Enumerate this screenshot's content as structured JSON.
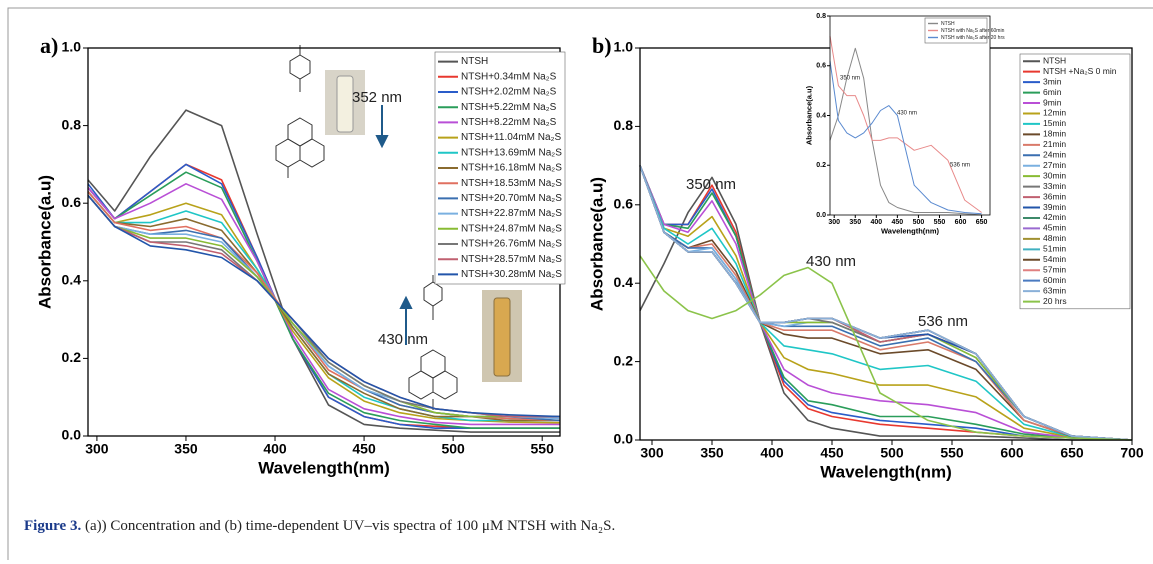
{
  "chart_data": [
    {
      "type": "line",
      "panel_label": "a)",
      "xlabel": "Wavelength(nm)",
      "ylabel": "Absorbance(a.u)",
      "xlim": [
        295,
        560
      ],
      "ylim": [
        0,
        1.0
      ],
      "xticks": [
        300,
        350,
        400,
        450,
        500,
        550
      ],
      "yticks": [
        {
          "value": 0,
          "label": "0.0"
        },
        0.2,
        0.4,
        0.6,
        0.8,
        {
          "value": 1.0,
          "label": "1.0"
        }
      ],
      "annotations": [
        "352 nm",
        "430 nm"
      ],
      "x": [
        295,
        310,
        330,
        350,
        370,
        390,
        410,
        430,
        450,
        470,
        490,
        510,
        530,
        560
      ],
      "series": [
        {
          "name": "NTSH",
          "color": "#555555",
          "values": [
            0.66,
            0.58,
            0.72,
            0.84,
            0.8,
            0.52,
            0.25,
            0.08,
            0.03,
            0.02,
            0.015,
            0.01,
            0.01,
            0.01
          ]
        },
        {
          "name": "NTSH+0.34mM Na₂S",
          "color": "#e8382f",
          "values": [
            0.64,
            0.56,
            0.63,
            0.7,
            0.66,
            0.46,
            0.25,
            0.1,
            0.05,
            0.03,
            0.025,
            0.02,
            0.02,
            0.02
          ]
        },
        {
          "name": "NTSH+2.02mM Na₂S",
          "color": "#2a5cc9",
          "values": [
            0.65,
            0.56,
            0.63,
            0.7,
            0.65,
            0.46,
            0.25,
            0.1,
            0.05,
            0.03,
            0.02,
            0.02,
            0.02,
            0.02
          ]
        },
        {
          "name": "NTSH+5.22mM Na₂S",
          "color": "#2a9d5a",
          "values": [
            0.64,
            0.56,
            0.62,
            0.68,
            0.64,
            0.45,
            0.25,
            0.11,
            0.06,
            0.04,
            0.03,
            0.02,
            0.02,
            0.02
          ]
        },
        {
          "name": "NTSH+8.22mM Na₂S",
          "color": "#b94fd6",
          "values": [
            0.64,
            0.56,
            0.6,
            0.65,
            0.61,
            0.45,
            0.26,
            0.12,
            0.07,
            0.05,
            0.035,
            0.03,
            0.03,
            0.03
          ]
        },
        {
          "name": "NTSH+11.04mM Na₂S",
          "color": "#b8a21a",
          "values": [
            0.63,
            0.55,
            0.57,
            0.6,
            0.57,
            0.43,
            0.27,
            0.15,
            0.09,
            0.06,
            0.045,
            0.04,
            0.036,
            0.034
          ]
        },
        {
          "name": "NTSH+13.69mM Na₂S",
          "color": "#1fc6c6",
          "values": [
            0.63,
            0.55,
            0.55,
            0.58,
            0.55,
            0.43,
            0.28,
            0.16,
            0.1,
            0.07,
            0.05,
            0.04,
            0.04,
            0.04
          ]
        },
        {
          "name": "NTSH+16.18mM Na₂S",
          "color": "#8a6b2f",
          "values": [
            0.63,
            0.55,
            0.54,
            0.56,
            0.53,
            0.42,
            0.28,
            0.16,
            0.11,
            0.07,
            0.05,
            0.05,
            0.04,
            0.04
          ]
        },
        {
          "name": "NTSH+18.53mM Na₂S",
          "color": "#e07060",
          "values": [
            0.63,
            0.55,
            0.53,
            0.54,
            0.51,
            0.42,
            0.29,
            0.17,
            0.12,
            0.08,
            0.06,
            0.05,
            0.045,
            0.04
          ]
        },
        {
          "name": "NTSH+20.70mM Na₂S",
          "color": "#3a6fb0",
          "values": [
            0.62,
            0.54,
            0.52,
            0.53,
            0.51,
            0.41,
            0.29,
            0.18,
            0.12,
            0.08,
            0.06,
            0.05,
            0.05,
            0.04
          ]
        },
        {
          "name": "NTSH+22.87mM Na₂S",
          "color": "#7ab0e0",
          "values": [
            0.62,
            0.54,
            0.52,
            0.52,
            0.5,
            0.41,
            0.29,
            0.18,
            0.12,
            0.09,
            0.06,
            0.05,
            0.05,
            0.045
          ]
        },
        {
          "name": "NTSH+24.87mM Na₂S",
          "color": "#88bb33",
          "values": [
            0.62,
            0.54,
            0.51,
            0.51,
            0.49,
            0.41,
            0.29,
            0.19,
            0.13,
            0.09,
            0.06,
            0.05,
            0.05,
            0.05
          ]
        },
        {
          "name": "NTSH+26.76mM Na₂S",
          "color": "#777777",
          "values": [
            0.62,
            0.54,
            0.5,
            0.5,
            0.48,
            0.4,
            0.3,
            0.19,
            0.13,
            0.09,
            0.07,
            0.06,
            0.05,
            0.05
          ]
        },
        {
          "name": "NTSH+28.57mM Na₂S",
          "color": "#c06070",
          "values": [
            0.62,
            0.54,
            0.5,
            0.49,
            0.47,
            0.4,
            0.3,
            0.2,
            0.14,
            0.1,
            0.07,
            0.06,
            0.05,
            0.05
          ]
        },
        {
          "name": "NTSH+30.28mM Na₂S",
          "color": "#2255aa",
          "values": [
            0.62,
            0.54,
            0.49,
            0.48,
            0.46,
            0.4,
            0.3,
            0.2,
            0.14,
            0.1,
            0.07,
            0.06,
            0.055,
            0.05
          ]
        }
      ]
    },
    {
      "type": "line",
      "panel_label": "b)",
      "xlabel": "Wavelength(nm)",
      "ylabel": "Absorbance(a.u)",
      "xlim": [
        290,
        700
      ],
      "ylim": [
        0,
        1.0
      ],
      "xticks": [
        300,
        350,
        400,
        450,
        500,
        550,
        600,
        650,
        700
      ],
      "yticks": [
        {
          "value": 0,
          "label": "0.0"
        },
        0.2,
        0.4,
        0.6,
        0.8,
        {
          "value": 1.0,
          "label": "1.0"
        }
      ],
      "annotations": [
        "350 nm",
        "430 nm",
        "536 nm"
      ],
      "x": [
        290,
        310,
        330,
        350,
        370,
        390,
        410,
        430,
        450,
        490,
        530,
        570,
        610,
        650,
        700
      ],
      "series": [
        {
          "name": "NTSH",
          "color": "#555555",
          "values": [
            0.33,
            0.45,
            0.58,
            0.67,
            0.55,
            0.3,
            0.12,
            0.05,
            0.03,
            0.01,
            0.01,
            0.01,
            0.005,
            0,
            0
          ]
        },
        {
          "name": "NTSH +Na₂S 0 min",
          "color": "#e8382f",
          "values": [
            0.7,
            0.55,
            0.55,
            0.65,
            0.53,
            0.3,
            0.14,
            0.08,
            0.06,
            0.04,
            0.03,
            0.02,
            0.01,
            0.005,
            0
          ]
        },
        {
          "name": "3min",
          "color": "#2a5cc9",
          "values": [
            0.7,
            0.55,
            0.55,
            0.64,
            0.52,
            0.3,
            0.15,
            0.09,
            0.07,
            0.05,
            0.04,
            0.03,
            0.01,
            0.005,
            0
          ]
        },
        {
          "name": "6min",
          "color": "#2a9d5a",
          "values": [
            0.7,
            0.55,
            0.54,
            0.63,
            0.52,
            0.3,
            0.16,
            0.1,
            0.09,
            0.06,
            0.06,
            0.04,
            0.015,
            0.005,
            0
          ]
        },
        {
          "name": "9min",
          "color": "#b94fd6",
          "values": [
            0.7,
            0.55,
            0.53,
            0.61,
            0.5,
            0.3,
            0.18,
            0.14,
            0.12,
            0.1,
            0.09,
            0.07,
            0.02,
            0.006,
            0
          ]
        },
        {
          "name": "12min",
          "color": "#b8a21a",
          "values": [
            0.7,
            0.54,
            0.52,
            0.57,
            0.47,
            0.3,
            0.21,
            0.18,
            0.17,
            0.14,
            0.14,
            0.11,
            0.03,
            0.007,
            0
          ]
        },
        {
          "name": "15min",
          "color": "#1fc6c6",
          "values": [
            0.7,
            0.54,
            0.5,
            0.54,
            0.45,
            0.3,
            0.24,
            0.23,
            0.22,
            0.18,
            0.19,
            0.15,
            0.04,
            0.008,
            0
          ]
        },
        {
          "name": "18min",
          "color": "#6b4a2a",
          "values": [
            0.7,
            0.53,
            0.49,
            0.51,
            0.43,
            0.3,
            0.27,
            0.26,
            0.26,
            0.22,
            0.23,
            0.18,
            0.05,
            0.009,
            0
          ]
        },
        {
          "name": "21min",
          "color": "#d97a6a",
          "values": [
            0.7,
            0.53,
            0.49,
            0.5,
            0.42,
            0.3,
            0.28,
            0.28,
            0.28,
            0.23,
            0.25,
            0.2,
            0.05,
            0.01,
            0
          ]
        },
        {
          "name": "24min",
          "color": "#3a6fb0",
          "values": [
            0.7,
            0.53,
            0.49,
            0.49,
            0.41,
            0.3,
            0.29,
            0.29,
            0.29,
            0.24,
            0.26,
            0.2,
            0.06,
            0.01,
            0
          ]
        },
        {
          "name": "27min",
          "color": "#7ab0e0",
          "values": [
            0.7,
            0.53,
            0.48,
            0.49,
            0.41,
            0.3,
            0.29,
            0.3,
            0.3,
            0.25,
            0.27,
            0.21,
            0.06,
            0.01,
            0
          ]
        },
        {
          "name": "30min",
          "color": "#88bb33",
          "values": [
            0.7,
            0.53,
            0.48,
            0.48,
            0.4,
            0.3,
            0.3,
            0.3,
            0.3,
            0.25,
            0.27,
            0.21,
            0.06,
            0.01,
            0
          ]
        },
        {
          "name": "33min",
          "color": "#777777",
          "values": [
            0.7,
            0.53,
            0.48,
            0.48,
            0.4,
            0.3,
            0.3,
            0.31,
            0.3,
            0.25,
            0.27,
            0.22,
            0.06,
            0.01,
            0
          ]
        },
        {
          "name": "36min",
          "color": "#c06070",
          "values": [
            0.7,
            0.53,
            0.48,
            0.48,
            0.4,
            0.3,
            0.3,
            0.31,
            0.31,
            0.25,
            0.27,
            0.22,
            0.06,
            0.01,
            0
          ]
        },
        {
          "name": "39min",
          "color": "#2255aa",
          "values": [
            0.7,
            0.53,
            0.48,
            0.48,
            0.4,
            0.3,
            0.3,
            0.31,
            0.31,
            0.26,
            0.27,
            0.22,
            0.06,
            0.01,
            0
          ]
        },
        {
          "name": "42min",
          "color": "#3d8a6a",
          "values": [
            0.7,
            0.53,
            0.48,
            0.48,
            0.4,
            0.3,
            0.3,
            0.31,
            0.31,
            0.26,
            0.28,
            0.22,
            0.06,
            0.01,
            0
          ]
        },
        {
          "name": "45min",
          "color": "#9a6ad0",
          "values": [
            0.7,
            0.53,
            0.48,
            0.48,
            0.4,
            0.3,
            0.3,
            0.31,
            0.31,
            0.26,
            0.28,
            0.22,
            0.06,
            0.01,
            0
          ]
        },
        {
          "name": "48min",
          "color": "#a09030",
          "values": [
            0.7,
            0.53,
            0.48,
            0.48,
            0.4,
            0.3,
            0.3,
            0.31,
            0.31,
            0.26,
            0.28,
            0.22,
            0.06,
            0.01,
            0
          ]
        },
        {
          "name": "51min",
          "color": "#40b0c0",
          "values": [
            0.7,
            0.53,
            0.48,
            0.48,
            0.4,
            0.3,
            0.3,
            0.31,
            0.31,
            0.26,
            0.28,
            0.22,
            0.06,
            0.01,
            0
          ]
        },
        {
          "name": "54min",
          "color": "#6b4a2a",
          "values": [
            0.7,
            0.53,
            0.48,
            0.48,
            0.4,
            0.3,
            0.3,
            0.31,
            0.31,
            0.26,
            0.28,
            0.22,
            0.06,
            0.01,
            0
          ]
        },
        {
          "name": "57min",
          "color": "#e08080",
          "values": [
            0.7,
            0.53,
            0.48,
            0.48,
            0.4,
            0.3,
            0.3,
            0.31,
            0.31,
            0.26,
            0.28,
            0.22,
            0.06,
            0.01,
            0
          ]
        },
        {
          "name": "60min",
          "color": "#4a7ac0",
          "values": [
            0.7,
            0.53,
            0.48,
            0.48,
            0.4,
            0.3,
            0.3,
            0.31,
            0.31,
            0.26,
            0.28,
            0.22,
            0.06,
            0.01,
            0
          ]
        },
        {
          "name": "63min",
          "color": "#8ab0d8",
          "values": [
            0.7,
            0.53,
            0.48,
            0.48,
            0.4,
            0.3,
            0.3,
            0.31,
            0.31,
            0.26,
            0.28,
            0.22,
            0.06,
            0.01,
            0
          ]
        },
        {
          "name": "20 hrs",
          "color": "#8bc34a",
          "values": [
            0.47,
            0.38,
            0.33,
            0.31,
            0.33,
            0.37,
            0.42,
            0.44,
            0.4,
            0.12,
            0.05,
            0.02,
            0.01,
            0.005,
            0
          ]
        }
      ]
    },
    {
      "type": "line",
      "xlabel": "Wavelength(nm)",
      "ylabel": "Absorbance(a.u)",
      "xlim": [
        290,
        670
      ],
      "ylim": [
        0,
        0.8
      ],
      "xticks": [
        300,
        350,
        400,
        450,
        500,
        550,
        600,
        650
      ],
      "yticks": [
        {
          "value": 0,
          "label": "0.0"
        },
        0.2,
        0.4,
        0.6,
        0.8
      ],
      "annotations": [
        "350 nm",
        "430 nm",
        "536 nm"
      ],
      "x": [
        290,
        310,
        330,
        350,
        370,
        390,
        410,
        430,
        450,
        490,
        530,
        570,
        610,
        650
      ],
      "series": [
        {
          "name": "NTSH",
          "color": "#888888",
          "values": [
            0.3,
            0.4,
            0.55,
            0.67,
            0.55,
            0.3,
            0.12,
            0.05,
            0.03,
            0.01,
            0.01,
            0.01,
            0.005,
            0
          ]
        },
        {
          "name": "NTSH with Na₂S after 60min",
          "color": "#e88a8a",
          "values": [
            0.72,
            0.52,
            0.48,
            0.48,
            0.4,
            0.3,
            0.3,
            0.31,
            0.31,
            0.26,
            0.28,
            0.22,
            0.06,
            0.01
          ]
        },
        {
          "name": "NTSH with Na₂S after 20 hrs",
          "color": "#5a8ad0",
          "values": [
            0.62,
            0.38,
            0.33,
            0.31,
            0.33,
            0.37,
            0.42,
            0.44,
            0.4,
            0.12,
            0.05,
            0.02,
            0.01,
            0.005
          ]
        }
      ]
    }
  ],
  "caption": {
    "label": "Figure 3.",
    "text": "(a)) Concentration and (b) time-dependent UV–vis spectra of 100 μM NTSH with Na₂S."
  }
}
